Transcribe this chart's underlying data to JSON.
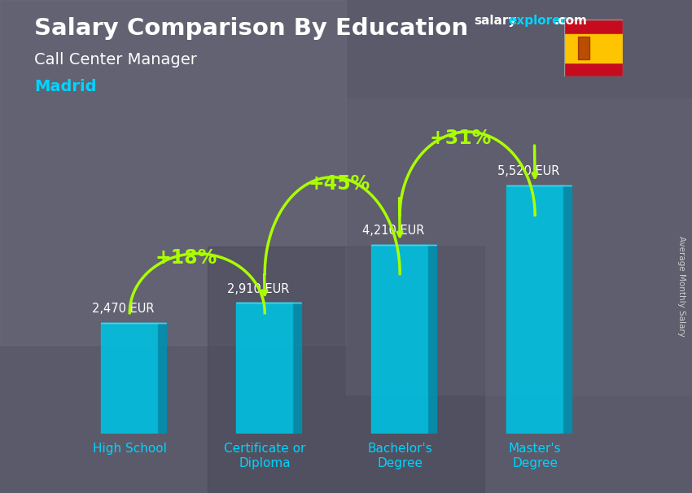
{
  "title_salary": "Salary Comparison By Education",
  "subtitle_job": "Call Center Manager",
  "subtitle_city": "Madrid",
  "ylabel": "Average Monthly Salary",
  "categories": [
    "High School",
    "Certificate or\nDiploma",
    "Bachelor's\nDegree",
    "Master's\nDegree"
  ],
  "values": [
    2470,
    2910,
    4210,
    5520
  ],
  "value_labels": [
    "2,470 EUR",
    "2,910 EUR",
    "4,210 EUR",
    "5,520 EUR"
  ],
  "pct_changes": [
    "+18%",
    "+45%",
    "+31%"
  ],
  "bar_color_face": "#00c0e0",
  "bar_color_side": "#0090b0",
  "bar_color_top": "#40d8f0",
  "bg_color": "#606070",
  "title_color": "#ffffff",
  "subtitle_job_color": "#ffffff",
  "subtitle_city_color": "#00d4ff",
  "value_label_color": "#ffffff",
  "pct_color": "#aaff00",
  "arrow_color": "#aaff00",
  "xtick_color": "#00d4ff",
  "brand_salary_color": "#ffffff",
  "brand_explorer_color": "#00d4ff",
  "brand_com_color": "#ffffff",
  "ylim": [
    0,
    6800
  ],
  "figsize": [
    8.5,
    6.06
  ],
  "dpi": 100
}
